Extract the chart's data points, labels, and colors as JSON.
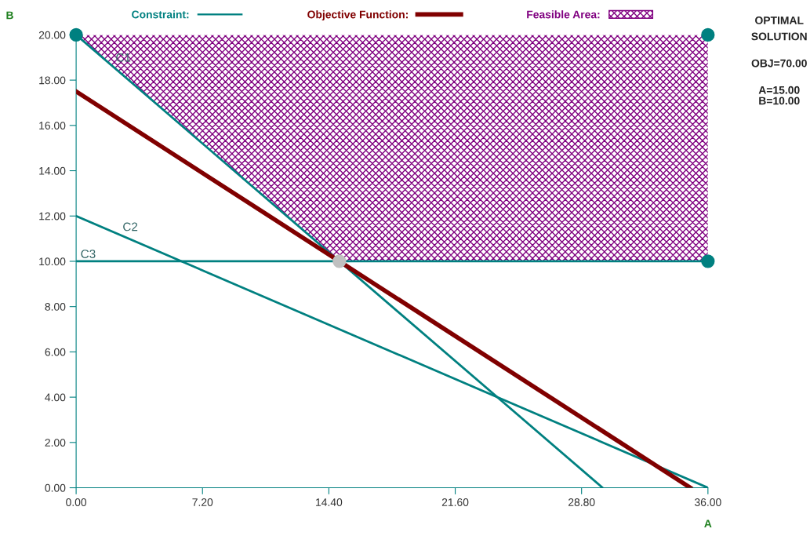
{
  "chart_data": {
    "type": "line",
    "xlabel": "A",
    "ylabel": "B",
    "xlim": [
      0,
      36
    ],
    "ylim": [
      0,
      20
    ],
    "xticks": [
      {
        "value": 0,
        "label": "0.00"
      },
      {
        "value": 7.2,
        "label": "7.20"
      },
      {
        "value": 14.4,
        "label": "14.40"
      },
      {
        "value": 21.6,
        "label": "21.60"
      },
      {
        "value": 28.8,
        "label": "28.80"
      },
      {
        "value": 36,
        "label": "36.00"
      }
    ],
    "yticks": [
      {
        "value": 0,
        "label": "0.00"
      },
      {
        "value": 2,
        "label": "2.00"
      },
      {
        "value": 4,
        "label": "4.00"
      },
      {
        "value": 6,
        "label": "6.00"
      },
      {
        "value": 8,
        "label": "8.00"
      },
      {
        "value": 10,
        "label": "10.00"
      },
      {
        "value": 12,
        "label": "12.00"
      },
      {
        "value": 14,
        "label": "14.00"
      },
      {
        "value": 16,
        "label": "16.00"
      },
      {
        "value": 18,
        "label": "18.00"
      },
      {
        "value": 20,
        "label": "20.00"
      }
    ],
    "series": [
      {
        "name": "Constraint:",
        "color": "#008080",
        "x": [
          0,
          30
        ],
        "values": [
          20,
          0
        ]
      },
      {
        "color": "#008080",
        "x": [
          0,
          36
        ],
        "values": [
          12,
          0
        ]
      },
      {
        "color": "#008080",
        "x": [
          0,
          36
        ],
        "values": [
          10,
          10
        ]
      },
      {
        "name": "Objective Function:",
        "color": "#800000",
        "x": [
          0,
          35
        ],
        "values": [
          17.5,
          0
        ]
      },
      {
        "type": "area",
        "name": "Feasible Area:",
        "color": "#800080",
        "x": [
          0,
          36,
          36,
          15
        ],
        "values": [
          20,
          20,
          10,
          10
        ]
      },
      {
        "type": "scatter",
        "color": "#008080",
        "x": [
          0,
          36,
          36
        ],
        "values": [
          20,
          20,
          10
        ],
        "marker": "circle"
      },
      {
        "type": "scatter",
        "color": "#c0c0c0",
        "x": [
          15
        ],
        "values": [
          10
        ],
        "marker": "circle"
      }
    ],
    "annotations": [
      {
        "text": "C1",
        "x": 2,
        "y": 18.67
      },
      {
        "text": "C2",
        "x": 2.4,
        "y": 11.2
      },
      {
        "text": "C3",
        "x": 0,
        "y": 10
      },
      "OPTIMAL",
      "SOLUTION",
      "OBJ=70.00",
      "A=15.00",
      "B=10.00"
    ],
    "legend": "top",
    "grid": false
  }
}
